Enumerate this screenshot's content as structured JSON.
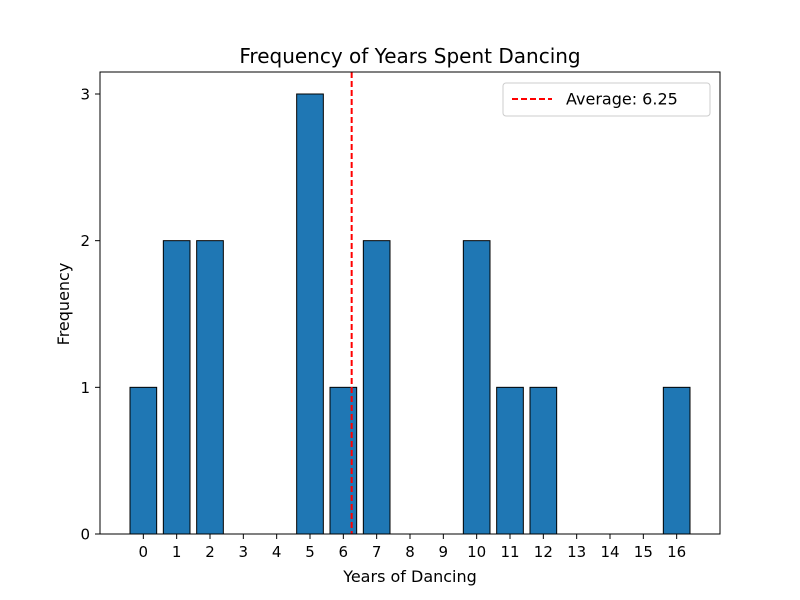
{
  "chart_data": {
    "type": "bar",
    "title": "Frequency of Years Spent Dancing",
    "xlabel": "Years of Dancing",
    "ylabel": "Frequency",
    "categories": [
      "0",
      "1",
      "2",
      "3",
      "4",
      "5",
      "6",
      "7",
      "8",
      "9",
      "10",
      "11",
      "12",
      "13",
      "14",
      "15",
      "16"
    ],
    "values": [
      1,
      2,
      2,
      0,
      0,
      3,
      1,
      2,
      0,
      0,
      2,
      1,
      1,
      0,
      0,
      0,
      1
    ],
    "yticks": [
      "0",
      "1",
      "2",
      "3"
    ],
    "ylim": [
      0,
      3.15
    ],
    "xlim": [
      -1.3,
      17.3
    ],
    "grid": false,
    "average": {
      "value": 6.25,
      "label": "Average: 6.25"
    },
    "legend_position": "top-right",
    "colors": {
      "bar": "#1f77b4",
      "bar_edge": "#000000",
      "average_line": "#ff0000"
    }
  }
}
